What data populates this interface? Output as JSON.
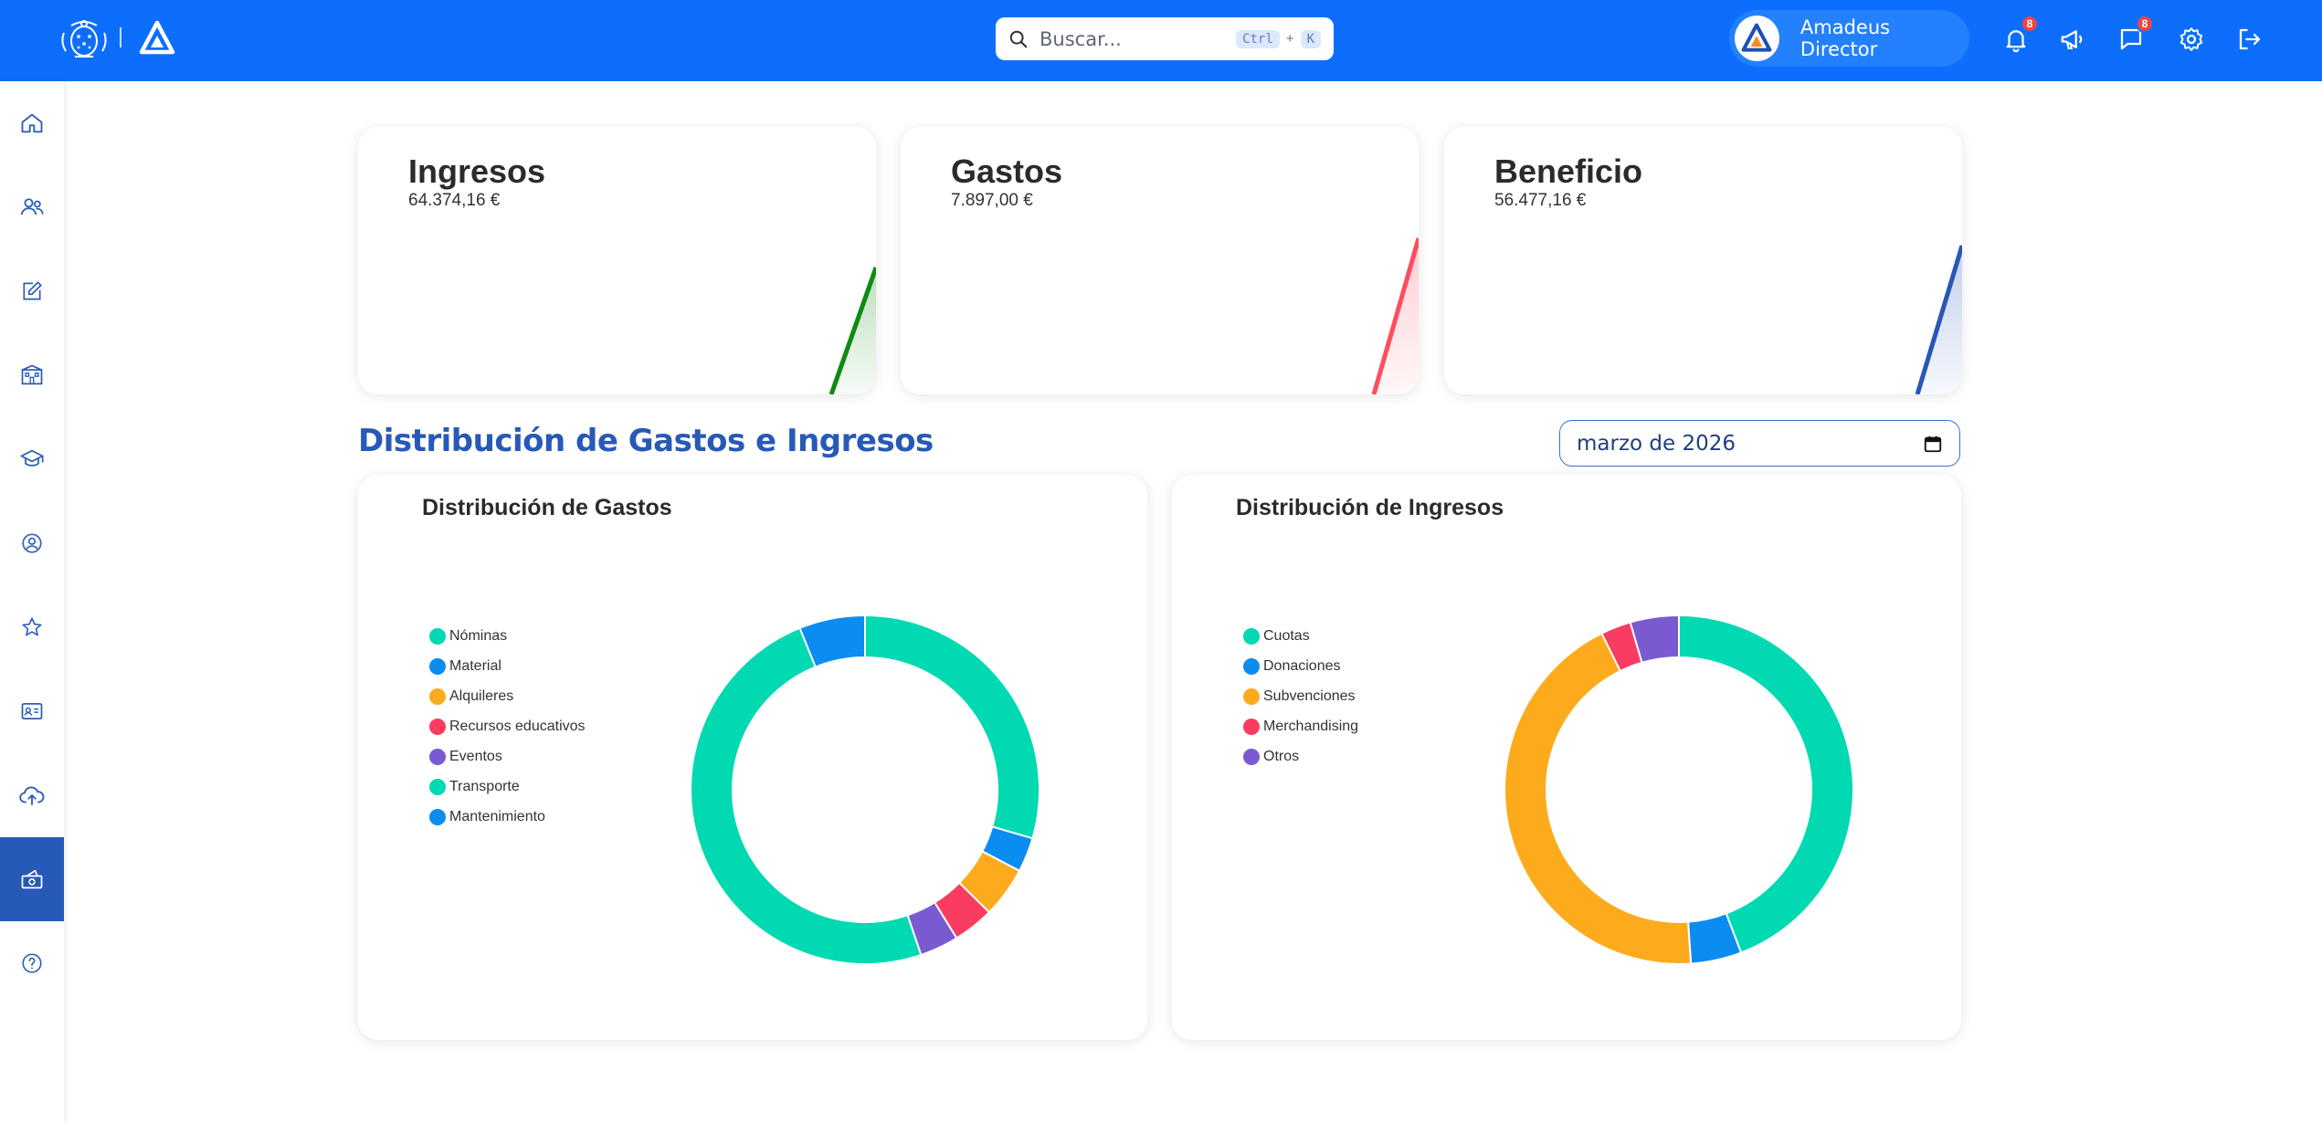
{
  "header": {
    "search_placeholder": "Buscar...",
    "shortcut_key1": "Ctrl",
    "shortcut_plus": "+",
    "shortcut_key2": "K",
    "user_name": "Amadeus Director",
    "notifications_count": "8",
    "messages_count": "8"
  },
  "sidebar": {
    "items": [
      {
        "icon": "home-icon"
      },
      {
        "icon": "users-icon"
      },
      {
        "icon": "edit-icon"
      },
      {
        "icon": "school-icon"
      },
      {
        "icon": "graduation-cap-icon"
      },
      {
        "icon": "user-circle-icon"
      },
      {
        "icon": "star-icon"
      },
      {
        "icon": "id-card-icon"
      },
      {
        "icon": "cloud-upload-icon"
      },
      {
        "icon": "money-icon",
        "active": true
      },
      {
        "icon": "help-icon"
      }
    ]
  },
  "hidden_strip_text": "...",
  "stats": [
    {
      "title": "Ingresos",
      "value": "64.374,16 €",
      "color": "#0f8a13"
    },
    {
      "title": "Gastos",
      "value": "7.897,00 €",
      "color": "#ff4d5e"
    },
    {
      "title": "Beneficio",
      "value": "56.477,16 €",
      "color": "#2857b4"
    }
  ],
  "section_title": "Distribución de Gastos e Ingresos",
  "month_filter": {
    "value": "marzo de 2026"
  },
  "chart_data": [
    {
      "type": "pie",
      "title": "Distribución de Gastos",
      "categories": [
        "Nóminas",
        "Material",
        "Alquileres",
        "Recursos educativos",
        "Eventos",
        "Transporte",
        "Mantenimiento"
      ],
      "values": [
        29.5,
        3.2,
        4.7,
        3.8,
        3.6,
        49.1,
        6.1
      ],
      "colors": [
        "#00d9b1",
        "#0b8cf0",
        "#fdab1c",
        "#fb3c61",
        "#7a5ad0",
        "#00d9b1",
        "#0b8cf0"
      ],
      "legend": "left"
    },
    {
      "type": "pie",
      "title": "Distribución de Ingresos",
      "categories": [
        "Cuotas",
        "Donaciones",
        "Subvenciones",
        "Merchandising",
        "Otros"
      ],
      "values": [
        44.2,
        4.7,
        43.8,
        2.8,
        4.5
      ],
      "colors": [
        "#00d9b1",
        "#0b8cf0",
        "#fdab1c",
        "#fb3c61",
        "#7a5ad0"
      ],
      "legend": "left"
    }
  ]
}
